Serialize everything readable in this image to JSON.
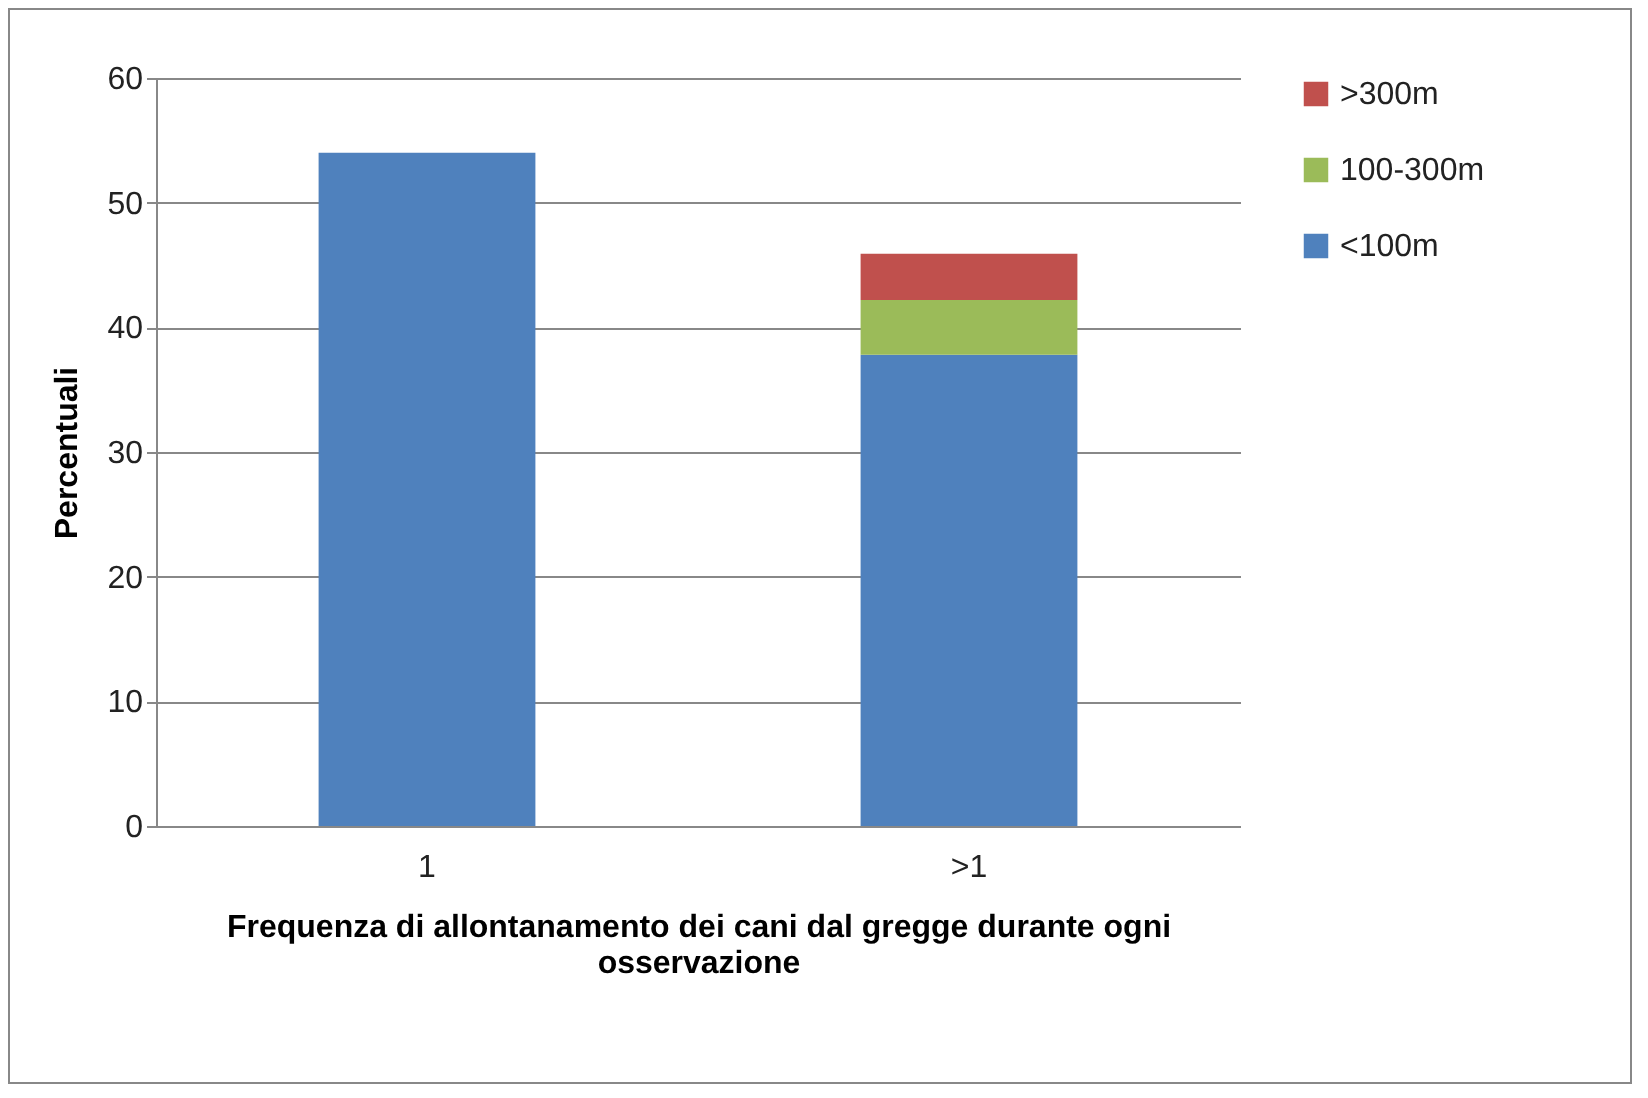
{
  "chart_data": {
    "type": "bar",
    "stacked": true,
    "xlabel": "Frequenza di allontanamento dei cani dal gregge durante ogni osservazione",
    "ylabel": "Percentuali",
    "categories": [
      "1",
      ">1"
    ],
    "series": [
      {
        "name": "<100m",
        "color": "#4f81bd",
        "values": [
          54,
          37.8
        ]
      },
      {
        "name": "100-300m",
        "color": "#9bbb59",
        "values": [
          null,
          4.4
        ]
      },
      {
        "name": ">300m",
        "color": "#c0504d",
        "values": [
          null,
          3.7
        ]
      }
    ],
    "ylim": [
      0,
      60
    ],
    "yticks": [
      0,
      10,
      20,
      30,
      40,
      50,
      60
    ],
    "grid": "y",
    "legend": "right"
  }
}
